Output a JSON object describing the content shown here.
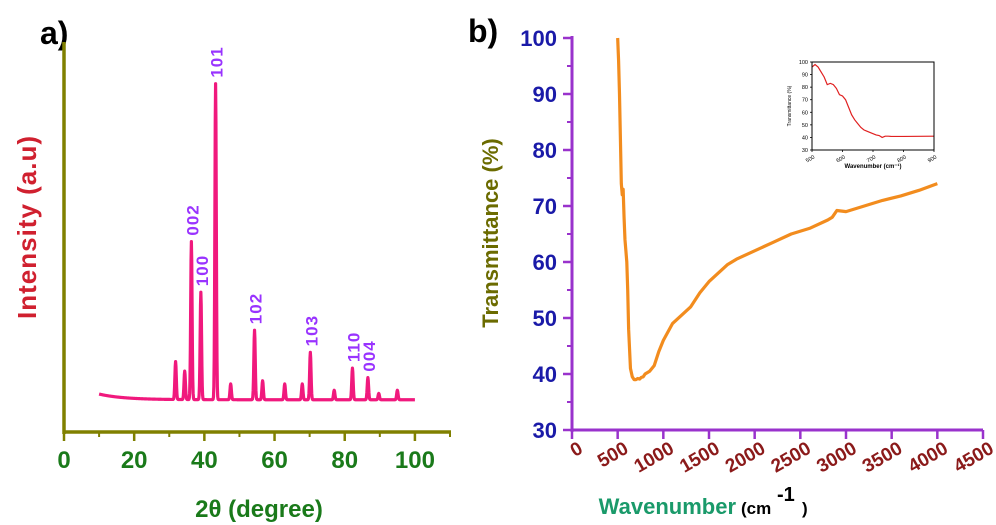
{
  "colors": {
    "a_axis": "#808000",
    "a_ticklabel": "#1a7a1a",
    "a_ylabel": "#d0202f",
    "a_xlabel": "#1a7a1a",
    "a_line": "#f0197d",
    "a_peaklabel": "#9933ff",
    "b_axis": "#9932cc",
    "b_ytick": "#1a1aa8",
    "b_xtick": "#8b1a1a",
    "b_ylabel": "#6b6b00",
    "b_xlabel": "#1a9a6a",
    "b_line": "#f28c1e",
    "inset_line": "#e02020"
  },
  "chart_data": [
    {
      "type": "line",
      "panel_label": "a)",
      "xlabel": "2θ (degree)",
      "ylabel": "Intensity (a.u)",
      "xlim": [
        0,
        110
      ],
      "xticks": [
        0,
        20,
        40,
        60,
        80,
        100
      ],
      "x_tick_labels": [
        "0",
        "20",
        "40",
        "60",
        "80",
        "100"
      ],
      "peaks": [
        {
          "x": 31.8,
          "y": 0.12
        },
        {
          "x": 34.4,
          "y": 0.09
        },
        {
          "x": 36.3,
          "y": 0.5,
          "label": "002"
        },
        {
          "x": 39.0,
          "y": 0.34,
          "label": "100"
        },
        {
          "x": 43.2,
          "y": 1.0,
          "label": "101"
        },
        {
          "x": 47.5,
          "y": 0.05
        },
        {
          "x": 54.3,
          "y": 0.22,
          "label": "102"
        },
        {
          "x": 56.6,
          "y": 0.06
        },
        {
          "x": 62.9,
          "y": 0.05
        },
        {
          "x": 67.9,
          "y": 0.05
        },
        {
          "x": 70.2,
          "y": 0.15,
          "label": "103"
        },
        {
          "x": 77.0,
          "y": 0.03
        },
        {
          "x": 82.2,
          "y": 0.1,
          "label": "110"
        },
        {
          "x": 86.6,
          "y": 0.07,
          "label": "004"
        },
        {
          "x": 89.7,
          "y": 0.02
        },
        {
          "x": 95.0,
          "y": 0.03
        }
      ],
      "x_range": [
        10,
        100
      ]
    },
    {
      "type": "line",
      "panel_label": "b)",
      "xlabel": "Wavenumber",
      "xlabel_unit": "(cm",
      "xlabel_sup": "-1",
      "xlabel_close": ")",
      "ylabel": "Transmittance (%)",
      "xlim": [
        0,
        4500
      ],
      "ylim": [
        30,
        100
      ],
      "xticks": [
        0,
        500,
        1000,
        1500,
        2000,
        2500,
        3000,
        3500,
        4000,
        4500
      ],
      "x_tick_labels": [
        "0",
        "500",
        "1000",
        "1500",
        "2000",
        "2500",
        "3000",
        "3500",
        "4000",
        "4500"
      ],
      "yticks": [
        30,
        40,
        50,
        60,
        70,
        80,
        90,
        100
      ],
      "y_tick_labels": [
        "30",
        "40",
        "50",
        "60",
        "70",
        "80",
        "90",
        "100"
      ],
      "x": [
        500,
        510,
        520,
        530,
        540,
        550,
        560,
        570,
        580,
        590,
        600,
        610,
        620,
        640,
        660,
        680,
        700,
        720,
        740,
        760,
        780,
        800,
        850,
        900,
        950,
        1000,
        1100,
        1200,
        1300,
        1400,
        1500,
        1600,
        1700,
        1800,
        2000,
        2200,
        2400,
        2600,
        2800,
        2850,
        2900,
        3000,
        3200,
        3400,
        3600,
        3800,
        4000
      ],
      "y": [
        100,
        96,
        90,
        82,
        74,
        72,
        73,
        68,
        64,
        62,
        60,
        55,
        48,
        41,
        39.5,
        39,
        39,
        39.2,
        39.1,
        39.4,
        39.5,
        40,
        40.5,
        41.5,
        44,
        46,
        49,
        50.5,
        52,
        54.5,
        56.5,
        58,
        59.5,
        60.5,
        62,
        63.5,
        65,
        66,
        67.5,
        68,
        69.2,
        69,
        70,
        71,
        71.8,
        72.8,
        74
      ]
    },
    {
      "type": "line",
      "panel_label": "inset",
      "xlabel": "Wavenumber (cm⁻¹)",
      "ylabel": "Transmittance (%)",
      "xlim": [
        500,
        900
      ],
      "ylim": [
        30,
        100
      ],
      "xticks": [
        500,
        600,
        700,
        800,
        900
      ],
      "x_tick_labels": [
        "500",
        "600",
        "700",
        "800",
        "900"
      ],
      "yticks": [
        30,
        40,
        50,
        60,
        70,
        80,
        90,
        100
      ],
      "y_tick_labels": [
        "30",
        "40",
        "50",
        "60",
        "70",
        "80",
        "90",
        "100"
      ],
      "x": [
        500,
        510,
        520,
        530,
        540,
        550,
        560,
        570,
        580,
        590,
        600,
        610,
        620,
        630,
        640,
        650,
        660,
        670,
        680,
        690,
        700,
        710,
        720,
        730,
        740,
        750,
        760,
        780,
        800,
        850,
        900
      ],
      "y": [
        96,
        98,
        96,
        92,
        88,
        82,
        83,
        82,
        79,
        74,
        73,
        70,
        64,
        58,
        54,
        51,
        48,
        46,
        45,
        44,
        43,
        42,
        41.5,
        40,
        41,
        41,
        40.8,
        40.8,
        40.8,
        40.9,
        41
      ]
    }
  ]
}
